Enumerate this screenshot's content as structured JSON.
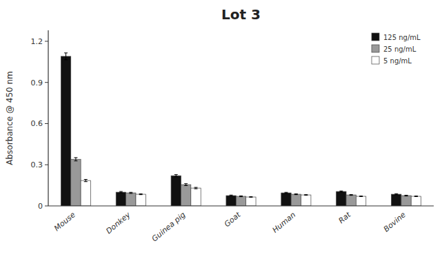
{
  "chart_data": {
    "type": "bar",
    "title": "Lot 3",
    "ylabel": "Absorbance @ 450 nm",
    "categories": [
      "Mouse",
      "Donkey",
      "Guinea pig",
      "Goat",
      "Human",
      "Rat",
      "Bovine"
    ],
    "series": [
      {
        "name": "125 ng/mL",
        "color": "#111111",
        "values": [
          1.09,
          0.1,
          0.22,
          0.075,
          0.095,
          0.105,
          0.085
        ],
        "errors": [
          0.025,
          0.005,
          0.008,
          0.004,
          0.004,
          0.004,
          0.004
        ]
      },
      {
        "name": "25 ng/mL",
        "color": "#999999",
        "values": [
          0.34,
          0.095,
          0.155,
          0.07,
          0.085,
          0.08,
          0.075
        ],
        "errors": [
          0.012,
          0.004,
          0.007,
          0.003,
          0.003,
          0.003,
          0.003
        ]
      },
      {
        "name": "5 ng/mL",
        "color": "#ffffff",
        "values": [
          0.185,
          0.085,
          0.13,
          0.065,
          0.08,
          0.07,
          0.07
        ],
        "errors": [
          0.008,
          0.003,
          0.005,
          0.002,
          0.002,
          0.002,
          0.002
        ]
      }
    ],
    "ylim": [
      0,
      1.28
    ],
    "yticks": [
      0,
      0.3,
      0.6,
      0.9,
      1.2
    ],
    "grid": false,
    "legend": "upper right"
  }
}
